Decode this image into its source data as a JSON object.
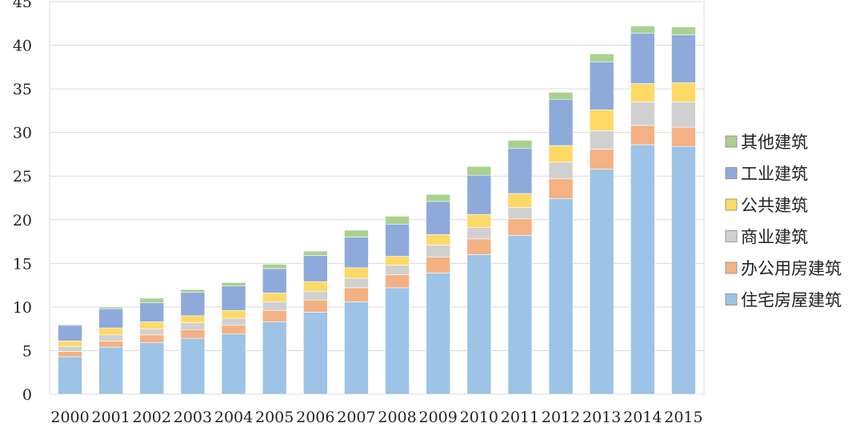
{
  "chart_data": {
    "type": "bar",
    "stacked": true,
    "categories": [
      "2000",
      "2001",
      "2002",
      "2003",
      "2004",
      "2005",
      "2006",
      "2007",
      "2008",
      "2009",
      "2010",
      "2011",
      "2012",
      "2013",
      "2014",
      "2015"
    ],
    "series": [
      {
        "name": "住宅房屋建筑",
        "color": "#9dc3e6",
        "values": [
          4.3,
          5.4,
          5.9,
          6.4,
          6.9,
          8.3,
          9.4,
          10.6,
          12.2,
          13.9,
          16.0,
          18.2,
          22.4,
          25.8,
          28.6,
          28.4
        ]
      },
      {
        "name": "办公用房建筑",
        "color": "#f4b183",
        "values": [
          0.6,
          0.7,
          0.9,
          1.0,
          1.0,
          1.3,
          1.4,
          1.6,
          1.5,
          1.8,
          1.8,
          1.9,
          2.3,
          2.3,
          2.2,
          2.2
        ]
      },
      {
        "name": "商业建筑",
        "color": "#d0d0d0",
        "values": [
          0.6,
          0.7,
          0.7,
          0.8,
          0.8,
          1.0,
          1.0,
          1.1,
          1.1,
          1.4,
          1.3,
          1.3,
          1.9,
          2.1,
          2.7,
          2.9
        ]
      },
      {
        "name": "公共建筑",
        "color": "#ffd966",
        "values": [
          0.6,
          0.8,
          0.8,
          0.8,
          0.9,
          1.0,
          1.1,
          1.2,
          1.0,
          1.2,
          1.5,
          1.6,
          1.9,
          2.4,
          2.1,
          2.2
        ]
      },
      {
        "name": "工业建筑",
        "color": "#8eaadb",
        "values": [
          1.8,
          2.2,
          2.2,
          2.7,
          2.8,
          2.8,
          3.0,
          3.5,
          3.7,
          3.8,
          4.5,
          5.2,
          5.3,
          5.5,
          5.8,
          5.5
        ]
      },
      {
        "name": "其他建筑",
        "color": "#a9d18e",
        "values": [
          0.1,
          0.2,
          0.5,
          0.3,
          0.4,
          0.5,
          0.5,
          0.8,
          0.9,
          0.8,
          1.0,
          0.9,
          0.8,
          0.9,
          0.8,
          0.9
        ]
      }
    ],
    "legend_order": [
      "其他建筑",
      "工业建筑",
      "公共建筑",
      "商业建筑",
      "办公用房建筑",
      "住宅房屋建筑"
    ],
    "yticks": [
      "0",
      "5",
      "10",
      "15",
      "20",
      "25",
      "30",
      "35",
      "40",
      "45"
    ],
    "ylim": [
      0,
      45
    ],
    "grid": "horizontal",
    "legend_position": "right"
  }
}
